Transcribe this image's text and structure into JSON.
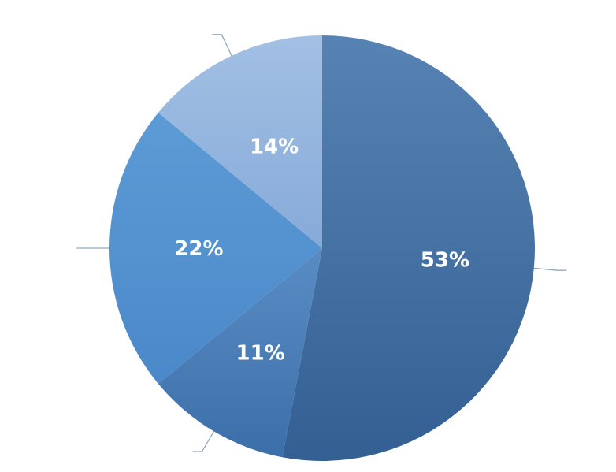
{
  "chart_data": {
    "type": "pie",
    "values": [
      53,
      11,
      22,
      14
    ],
    "labels": [
      "53%",
      "11%",
      "22%",
      "14%"
    ],
    "colors": [
      "#3f6fa6",
      "#4a80bd",
      "#5596d6",
      "#93b6df"
    ],
    "start_angle_deg": 0,
    "direction": "clockwise",
    "legend": "none",
    "title": ""
  }
}
